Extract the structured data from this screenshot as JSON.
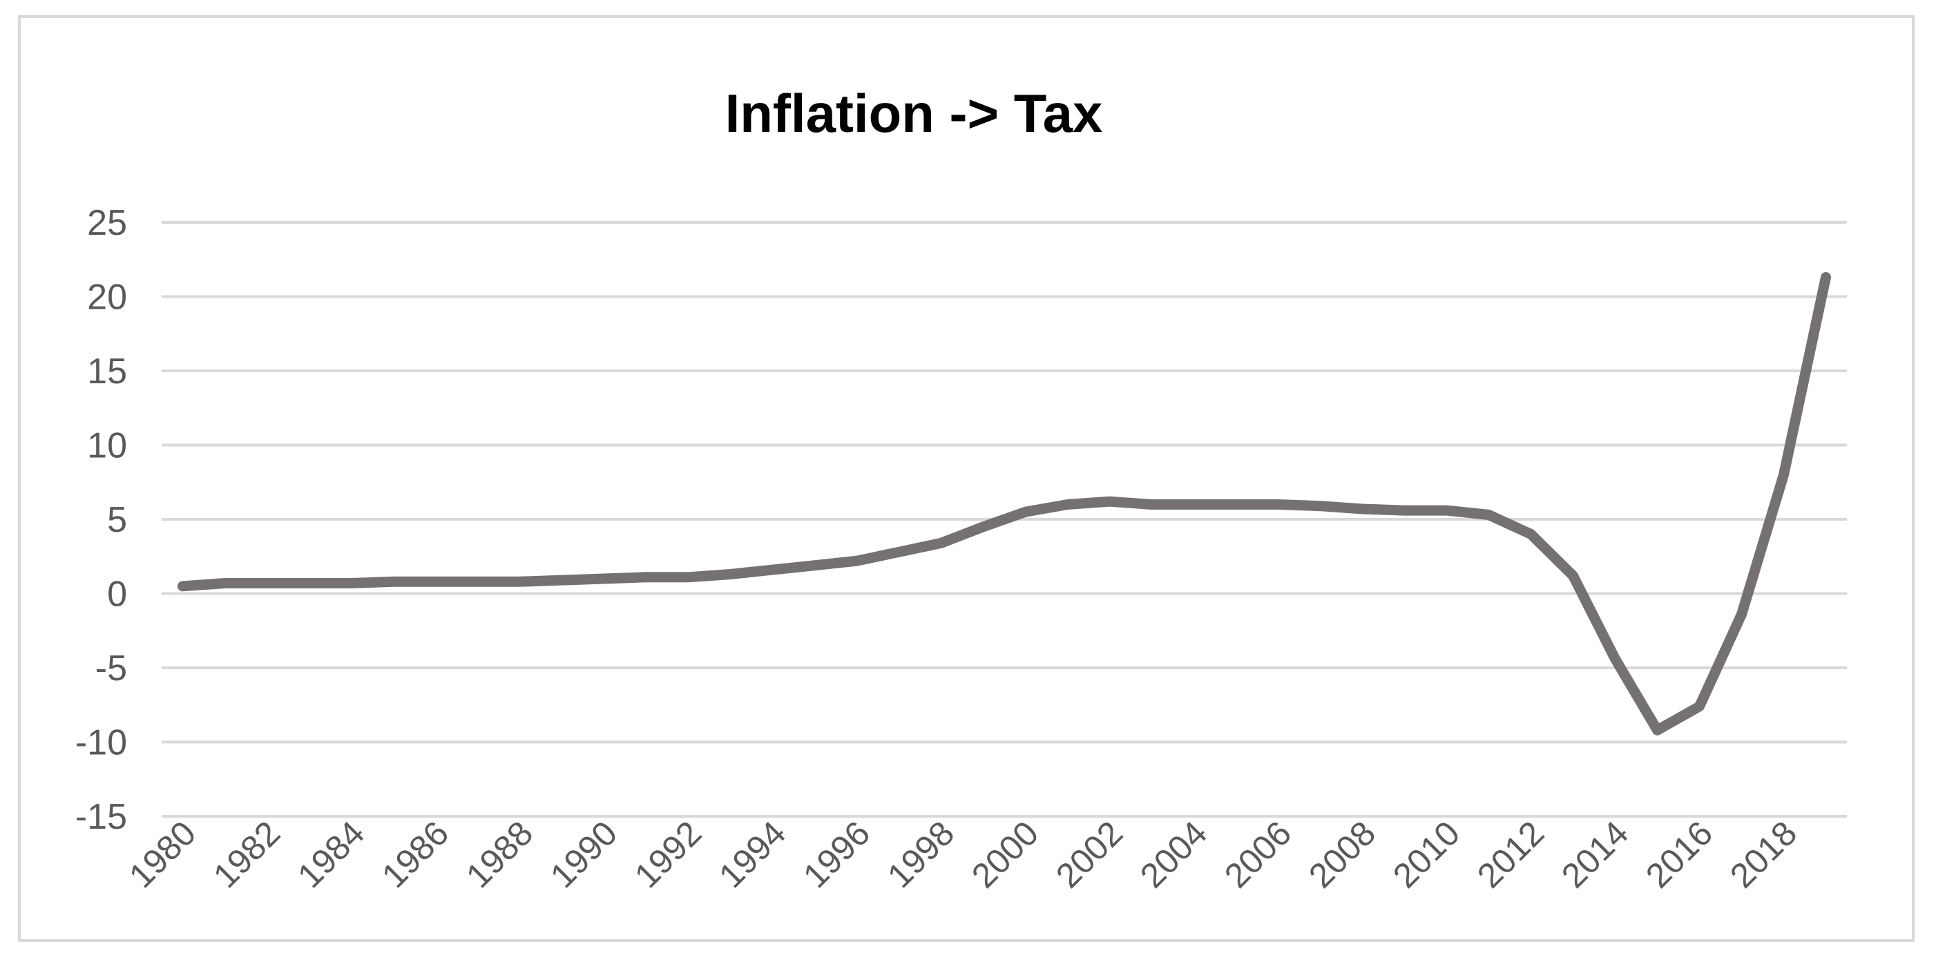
{
  "chart_data": {
    "type": "line",
    "title": "Inflation -> Tax",
    "xlabel": "",
    "ylabel": "",
    "ylim": [
      -15,
      25
    ],
    "yticks": [
      25,
      20,
      15,
      10,
      5,
      0,
      -5,
      -10,
      -15
    ],
    "xticks": [
      "1980",
      "1982",
      "1984",
      "1986",
      "1988",
      "1990",
      "1992",
      "1994",
      "1996",
      "1998",
      "2000",
      "2002",
      "2004",
      "2006",
      "2008",
      "2010",
      "2012",
      "2014",
      "2016",
      "2018"
    ],
    "grid": true,
    "legend": "none",
    "line_color": "#767171",
    "x": [
      1980,
      1981,
      1982,
      1983,
      1984,
      1985,
      1986,
      1987,
      1988,
      1989,
      1990,
      1991,
      1992,
      1993,
      1994,
      1995,
      1996,
      1997,
      1998,
      1999,
      2000,
      2001,
      2002,
      2003,
      2004,
      2005,
      2006,
      2007,
      2008,
      2009,
      2010,
      2011,
      2012,
      2013,
      2014,
      2015,
      2016,
      2017,
      2018,
      2019
    ],
    "series": [
      {
        "values": [
          0.5,
          0.7,
          0.7,
          0.7,
          0.7,
          0.8,
          0.8,
          0.8,
          0.8,
          0.9,
          1.0,
          1.1,
          1.1,
          1.3,
          1.6,
          1.9,
          2.2,
          2.8,
          3.4,
          4.5,
          5.5,
          6.0,
          6.2,
          6.0,
          6.0,
          6.0,
          6.0,
          5.9,
          5.7,
          5.6,
          5.6,
          5.3,
          4.0,
          1.2,
          -4.4,
          -9.2,
          -7.6,
          -1.4,
          8.0,
          21.3
        ]
      }
    ]
  }
}
